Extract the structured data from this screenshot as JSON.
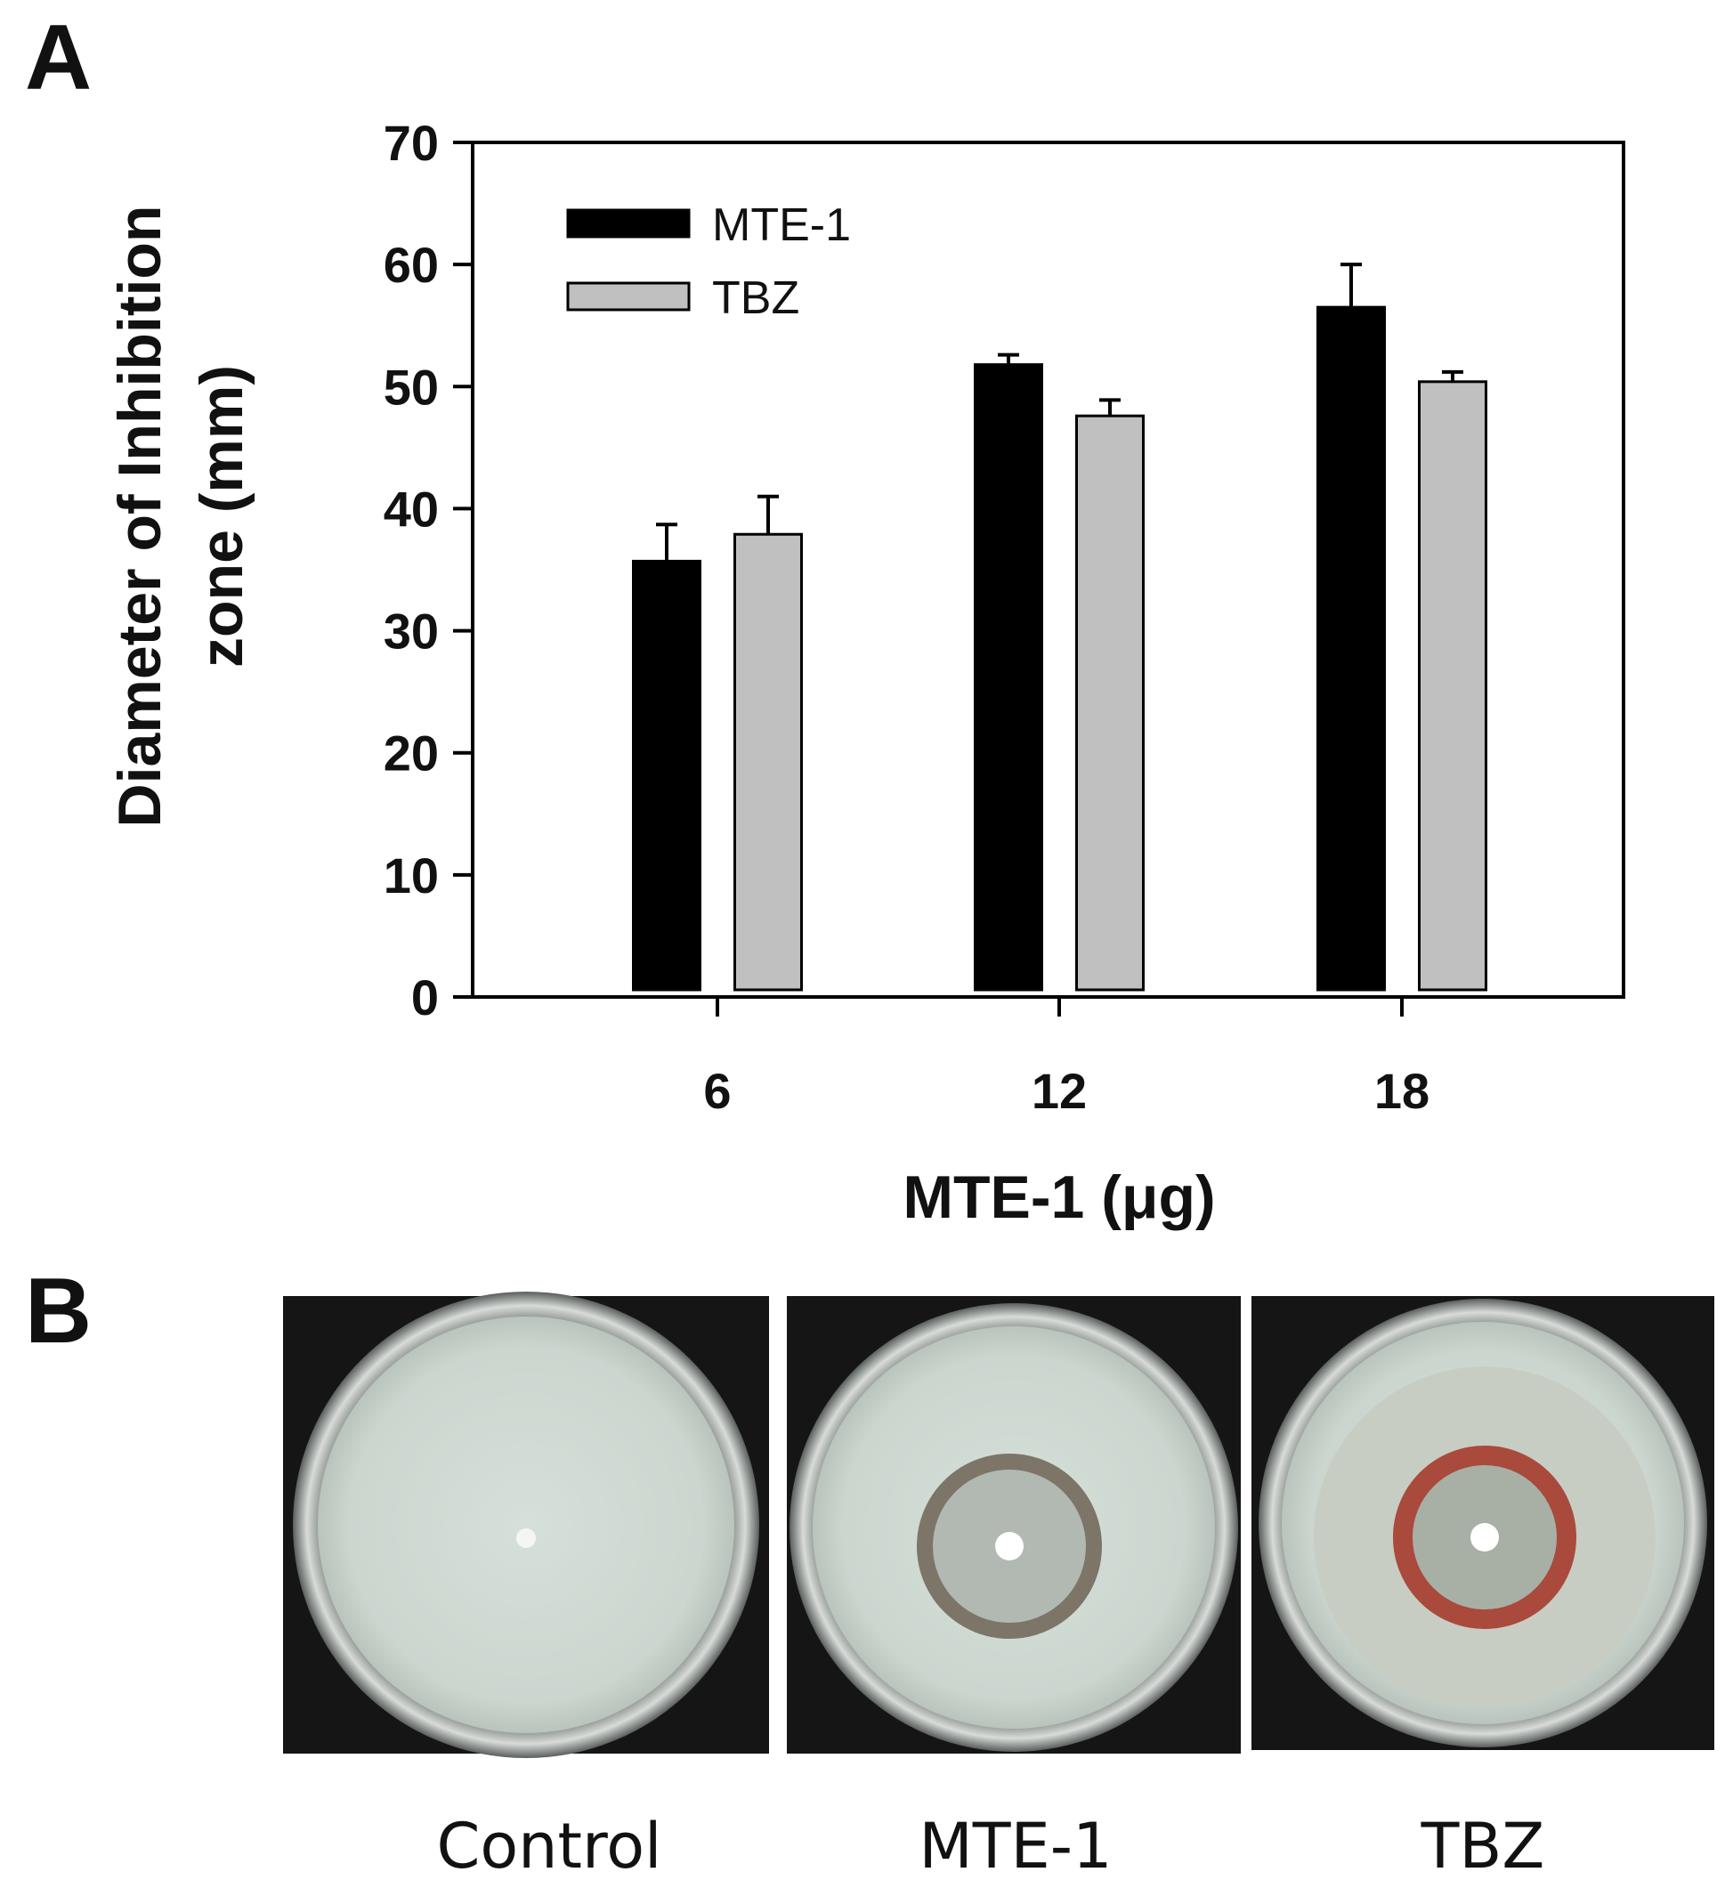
{
  "panels": {
    "a": "A",
    "b": "B"
  },
  "chart_data": {
    "type": "bar",
    "title": "",
    "xlabel": "MTE-1 (μg)",
    "ylabel_lines": [
      "Diameter of Inhibition",
      "zone (mm)"
    ],
    "categories": [
      "6",
      "12",
      "18"
    ],
    "ylim": [
      0,
      70
    ],
    "yticks": [
      "0",
      "10",
      "20",
      "30",
      "40",
      "50",
      "60",
      "70"
    ],
    "grid": false,
    "legend_position": "top-left",
    "series": [
      {
        "name": "MTE-1",
        "color": "#000000",
        "values": [
          35.7,
          51.8,
          56.5
        ],
        "errors": [
          3.0,
          0.8,
          3.5
        ]
      },
      {
        "name": "TBZ",
        "color": "#c0c0c0",
        "values": [
          37.9,
          47.6,
          50.4
        ],
        "errors": [
          3.1,
          1.3,
          0.8
        ]
      }
    ]
  },
  "plates": [
    {
      "label": "Control",
      "zone": "none"
    },
    {
      "label": "MTE-1",
      "zone": "gray-brown ring"
    },
    {
      "label": "TBZ",
      "zone": "red ring"
    }
  ]
}
